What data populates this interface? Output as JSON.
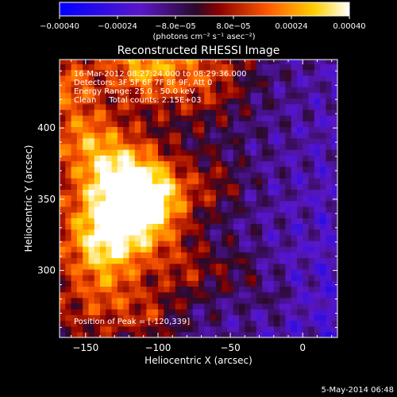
{
  "chart_data": {
    "type": "heatmap",
    "title": "Reconstructed RHESSI Image",
    "xlabel": "Heliocentric X (arcsec)",
    "ylabel": "Heliocentric Y (arcsec)",
    "xlim": [
      -168,
      24
    ],
    "ylim": [
      253,
      448
    ],
    "x_ticks": [
      -150,
      -100,
      -50,
      0
    ],
    "x_tick_labels": [
      "−150",
      "−100",
      "−50",
      "0"
    ],
    "y_ticks": [
      300,
      350,
      400
    ],
    "y_tick_labels": [
      "300",
      "350",
      "400"
    ],
    "colorbar": {
      "min": -0.0004,
      "max": 0.0004,
      "ticks": [
        -0.0004,
        -0.00024,
        -8e-05,
        8e-05,
        0.00024,
        0.0004
      ],
      "tick_labels": [
        "−0.00040",
        "−0.00024",
        "−8.0e−05",
        "8.0e−05",
        "0.00024",
        "0.00040"
      ],
      "unit_label": "(photons cm⁻² s⁻¹ asec⁻²)",
      "colors": [
        "#0000ff",
        "#5a17c8",
        "#2a0a2a",
        "#8a0000",
        "#ff5a00",
        "#ffd000",
        "#ffffff"
      ]
    },
    "annotations": [
      "16-Mar-2012 08:27:24.000 to 08:29:36.000",
      "Detectors: 3F 5F 6F 7F 8F 9F, Att 0",
      "Energy Range: 25.0 - 50.0 keV",
      "Clean     Total counts: 2.15E+03"
    ],
    "peak_label": "Position of Peak = [-120,339]",
    "peak_position": [
      -120,
      339
    ],
    "grid_spacing_arcsec": 4
  },
  "footer": {
    "timestamp": "5-May-2014 06:48"
  }
}
